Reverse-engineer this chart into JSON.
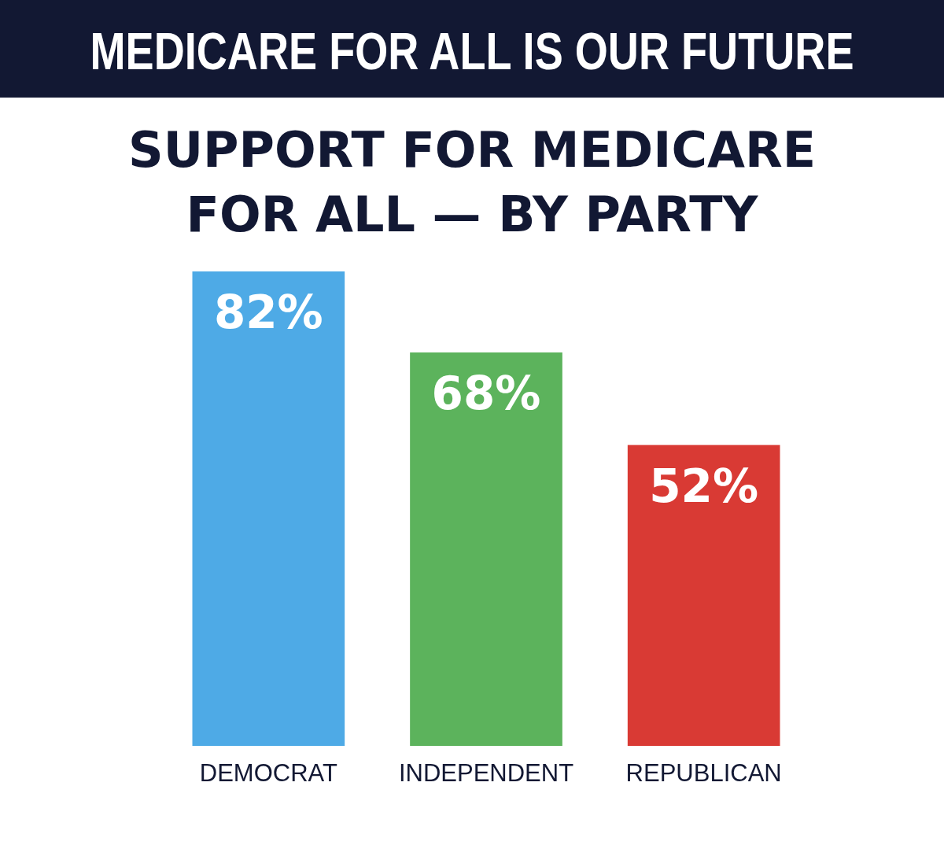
{
  "chart_data": {
    "type": "bar",
    "title": "MEDICARE FOR ALL IS OUR FUTURE",
    "subtitle": "SUPPORT FOR MEDICARE FOR ALL — BY PARTY",
    "categories": [
      "DEMOCRAT",
      "INDEPENDENT",
      "REPUBLICAN"
    ],
    "values": [
      82,
      68,
      52
    ],
    "colors": [
      "#4eaae6",
      "#5cb35c",
      "#d93a34"
    ],
    "value_labels": [
      "82%",
      "68%",
      "52%"
    ]
  }
}
